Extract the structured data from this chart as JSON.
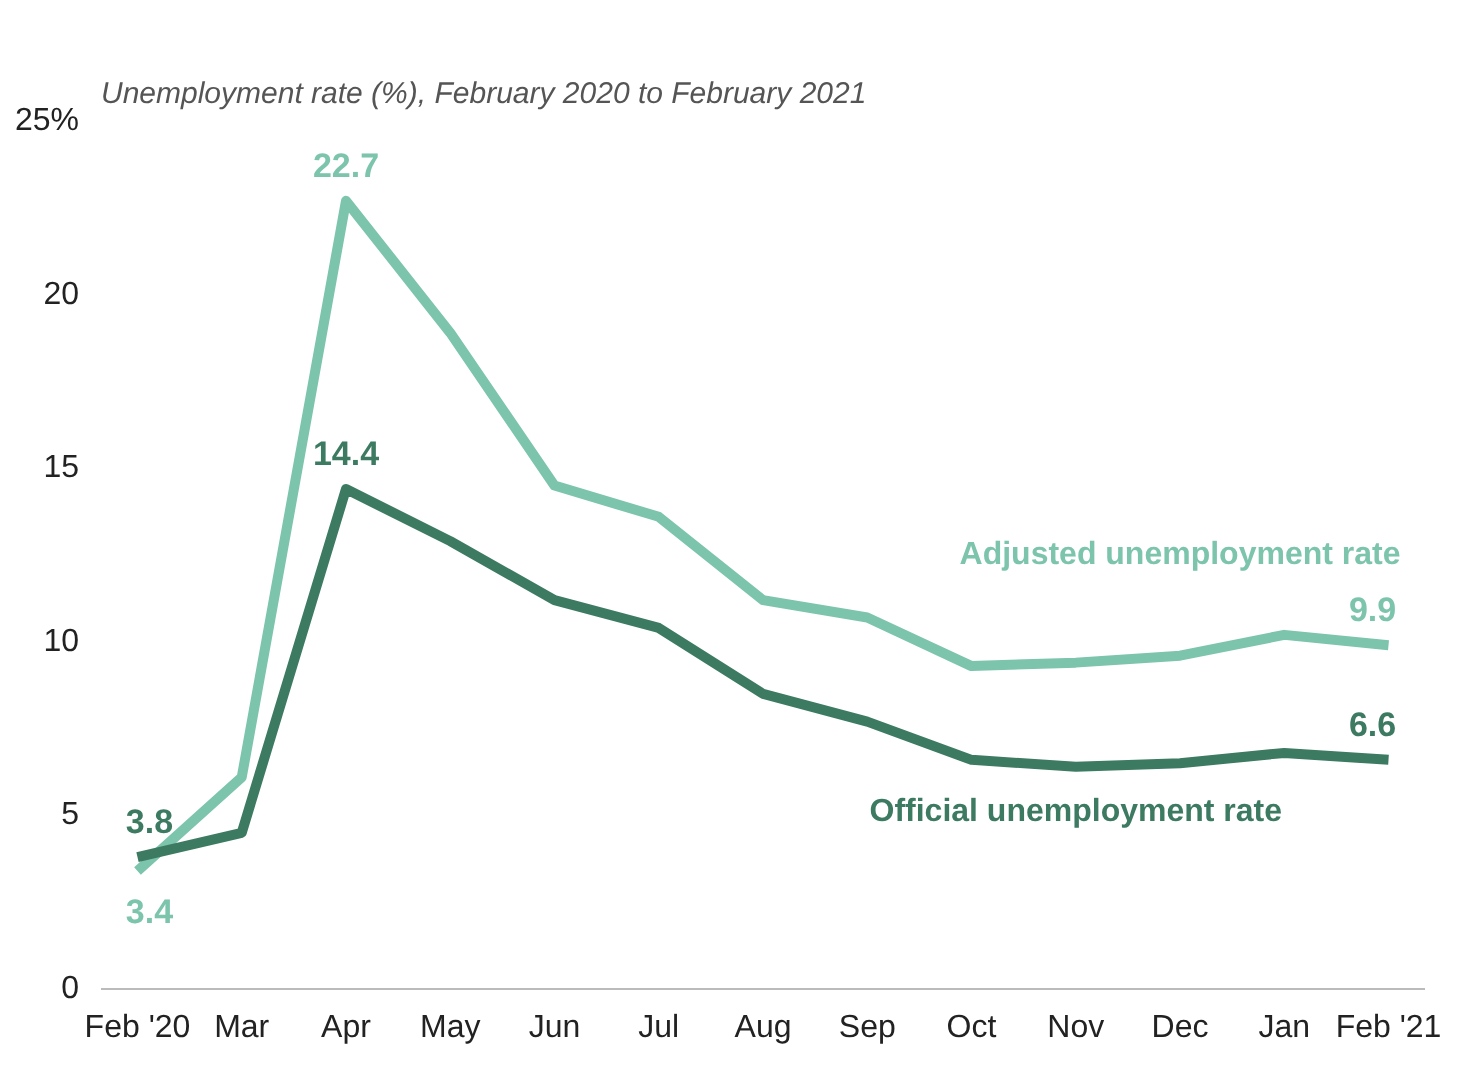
{
  "chart_data": {
    "type": "line",
    "title": "Unemployment rate (%), February 2020 to February 2021",
    "categories": [
      "Feb '20",
      "Mar",
      "Apr",
      "May",
      "Jun",
      "Jul",
      "Aug",
      "Sep",
      "Oct",
      "Nov",
      "Dec",
      "Jan",
      "Feb '21"
    ],
    "series": [
      {
        "name": "Adjusted unemployment rate",
        "color": "#7cc4ac",
        "values": [
          3.4,
          6.1,
          22.7,
          18.9,
          14.5,
          13.6,
          11.2,
          10.7,
          9.3,
          9.4,
          9.6,
          10.2,
          9.9
        ]
      },
      {
        "name": "Official unemployment rate",
        "color": "#3d7a62",
        "values": [
          3.8,
          4.5,
          14.4,
          12.9,
          11.2,
          10.4,
          8.5,
          7.7,
          6.6,
          6.4,
          6.5,
          6.8,
          6.6
        ]
      }
    ],
    "ylim": [
      0,
      25
    ],
    "yticks": [
      0,
      5,
      10,
      15,
      20,
      {
        "value": 25,
        "label": "25%"
      }
    ],
    "grid": false,
    "legend": false,
    "marker": "none",
    "line_style": "solid",
    "annotations": [
      {
        "text": "3.4",
        "x": "Feb '20",
        "y": 3.4
      },
      {
        "text": "3.8",
        "x": "Feb '20",
        "y": 3.8
      },
      {
        "text": "22.7",
        "x": "Apr",
        "y": 22.7
      },
      {
        "text": "14.4",
        "x": "Apr",
        "y": 14.4
      },
      {
        "text": "9.9",
        "x": "Feb '21",
        "y": 9.9
      },
      {
        "text": "6.6",
        "x": "Feb '21",
        "y": 6.6
      }
    ]
  }
}
